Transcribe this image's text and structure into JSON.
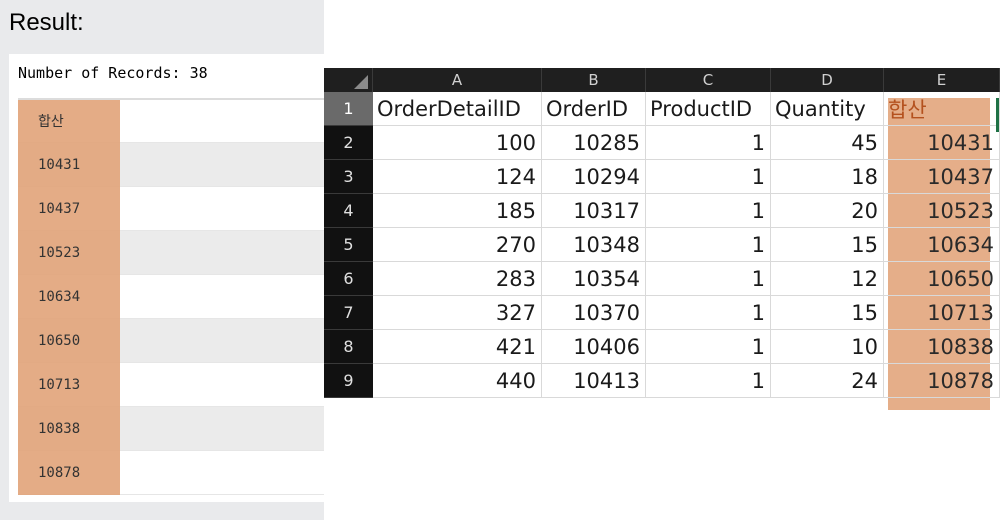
{
  "result": {
    "title": "Result:",
    "records_label": "Number of Records:",
    "records_count": "38",
    "column_header": "합산",
    "values": [
      "10431",
      "10437",
      "10523",
      "10634",
      "10650",
      "10713",
      "10838",
      "10878"
    ]
  },
  "sheet": {
    "columns": [
      "A",
      "B",
      "C",
      "D",
      "E"
    ],
    "row_numbers": [
      "1",
      "2",
      "3",
      "4",
      "5",
      "6",
      "7",
      "8",
      "9"
    ],
    "headers": [
      "OrderDetailID",
      "OrderID",
      "ProductID",
      "Quantity",
      "합산"
    ],
    "rows": [
      [
        "100",
        "10285",
        "1",
        "45",
        "10431"
      ],
      [
        "124",
        "10294",
        "1",
        "18",
        "10437"
      ],
      [
        "185",
        "10317",
        "1",
        "20",
        "10523"
      ],
      [
        "270",
        "10348",
        "1",
        "15",
        "10634"
      ],
      [
        "283",
        "10354",
        "1",
        "12",
        "10650"
      ],
      [
        "327",
        "10370",
        "1",
        "15",
        "10713"
      ],
      [
        "421",
        "10406",
        "1",
        "10",
        "10838"
      ],
      [
        "440",
        "10413",
        "1",
        "24",
        "10878"
      ]
    ]
  },
  "colors": {
    "highlight": "#e2a57c",
    "header_dark": "#1f1f1f",
    "selection_green": "#1e7145"
  }
}
